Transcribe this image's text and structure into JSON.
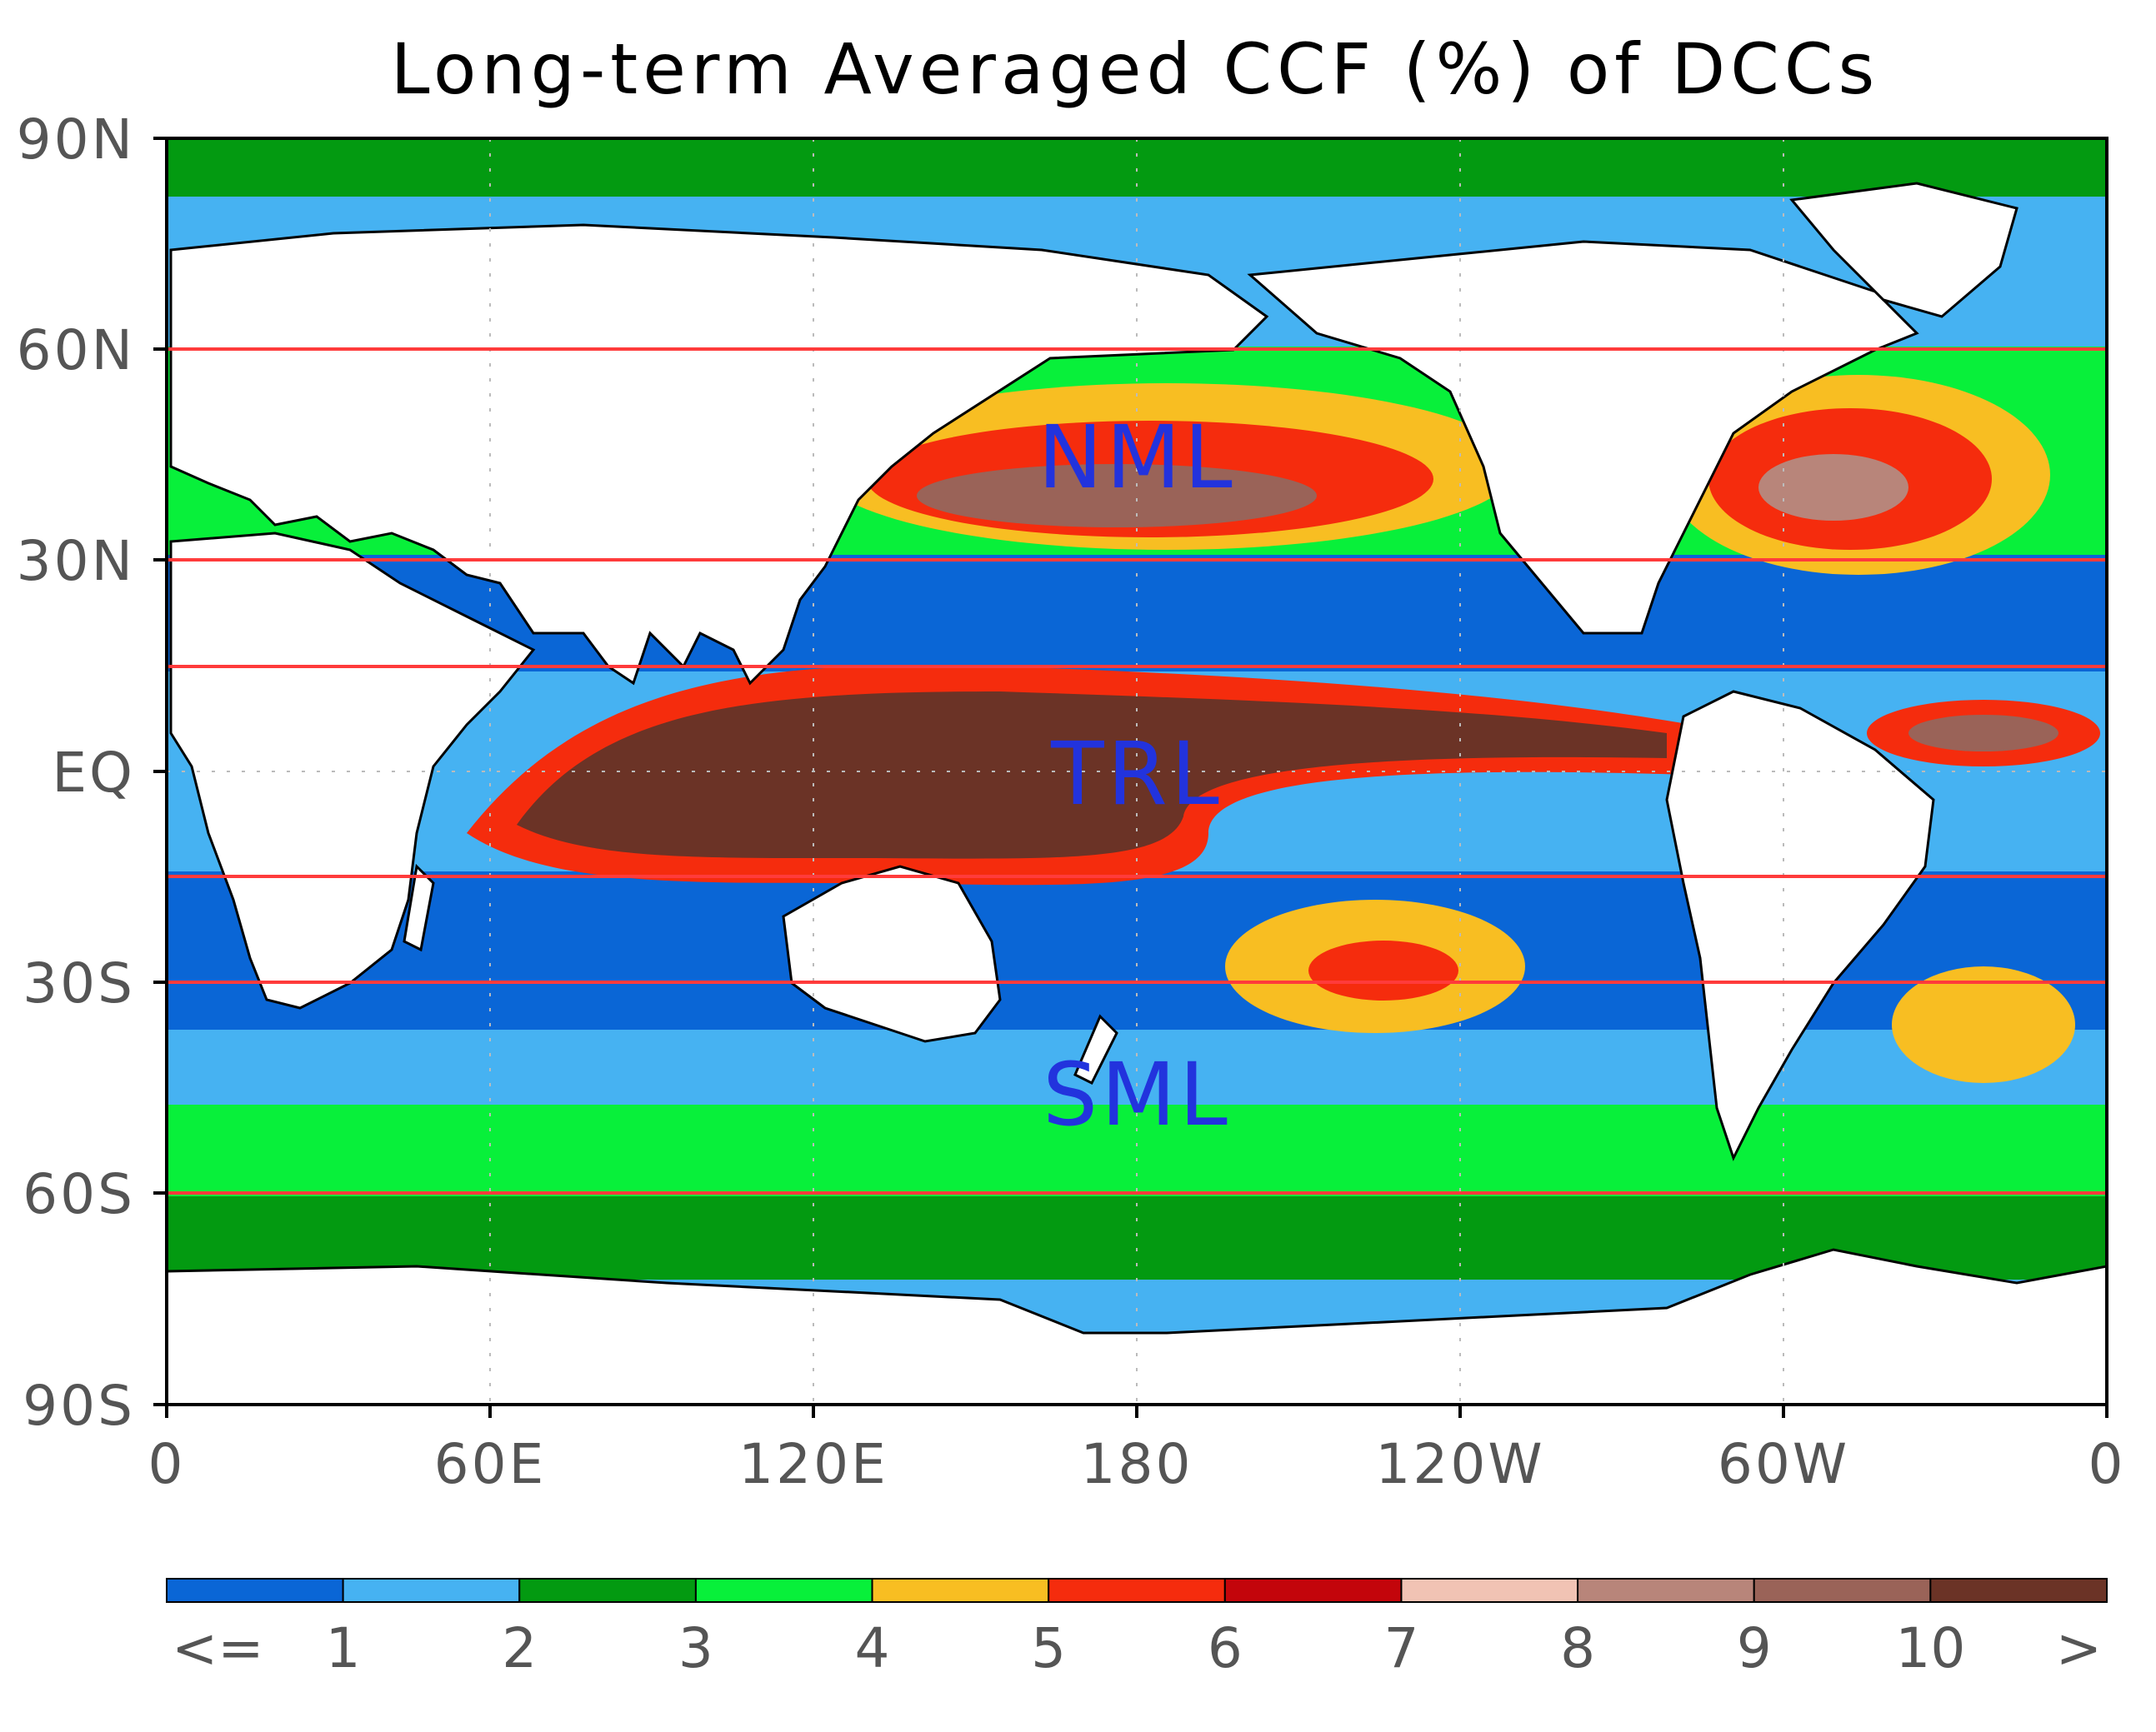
{
  "title": "Long-term Averaged CCF (%) of DCCs",
  "y_ticks": [
    "90N",
    "60N",
    "30N",
    "EQ",
    "30S",
    "60S",
    "90S"
  ],
  "x_ticks": [
    "0",
    "60E",
    "120E",
    "180",
    "120W",
    "60W",
    "0"
  ],
  "regions": [
    {
      "label": "NML",
      "lat_range": [
        30,
        60
      ]
    },
    {
      "label": "TRL",
      "lat_range": [
        -15,
        15
      ]
    },
    {
      "label": "SML",
      "lat_range": [
        -60,
        -30
      ]
    }
  ],
  "colorbar": {
    "labels": [
      "<=",
      "1",
      "2",
      "3",
      "4",
      "5",
      "6",
      "7",
      "8",
      "9",
      "10",
      ">"
    ],
    "colors": [
      "#0a66d6",
      "#46b2f2",
      "#039a11",
      "#08f03a",
      "#f8be22",
      "#f52c0d",
      "#c3050b",
      "#f1c3b4",
      "#b8857a",
      "#9a6358",
      "#6b3326"
    ]
  },
  "map_colors": {
    "land": "#ffffff",
    "region_box": "#ff3b3b",
    "coast": "#000000"
  }
}
